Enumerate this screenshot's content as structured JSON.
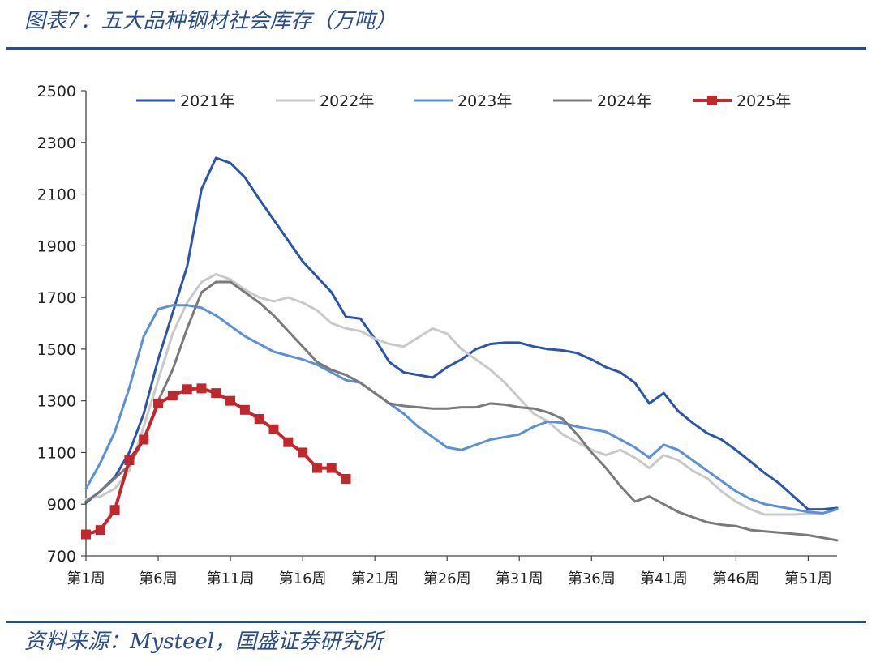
{
  "page": {
    "title": "图表7：五大品种钢材社会库存（万吨）",
    "source": "资料来源：Mysteel，国盛证券研究所",
    "accent_color": "#2a4d86"
  },
  "chart_data": {
    "type": "line",
    "title": "五大品种钢材社会库存（万吨）",
    "xlabel": "",
    "ylabel": "",
    "ylim": [
      700,
      2500
    ],
    "yticks": [
      700,
      900,
      1100,
      1300,
      1500,
      1700,
      1900,
      2100,
      2300,
      2500
    ],
    "xlim": [
      1,
      53
    ],
    "xticks": [
      {
        "week": 1,
        "label": "第1周"
      },
      {
        "week": 6,
        "label": "第6周"
      },
      {
        "week": 11,
        "label": "第11周"
      },
      {
        "week": 16,
        "label": "第16周"
      },
      {
        "week": 21,
        "label": "第21周"
      },
      {
        "week": 26,
        "label": "第26周"
      },
      {
        "week": 31,
        "label": "第31周"
      },
      {
        "week": 36,
        "label": "第36周"
      },
      {
        "week": 41,
        "label": "第41周"
      },
      {
        "week": 46,
        "label": "第46周"
      },
      {
        "week": 51,
        "label": "第51周"
      }
    ],
    "grid": false,
    "legend_position": "top",
    "series": [
      {
        "name": "2021年",
        "color": "#2b55a8",
        "marker": "none",
        "values": [
          905,
          950,
          1005,
          1100,
          1250,
          1460,
          1640,
          1820,
          2120,
          2240,
          2220,
          2165,
          2080,
          2000,
          1920,
          1840,
          1780,
          1720,
          1625,
          1618,
          1540,
          1450,
          1410,
          1400,
          1390,
          1430,
          1460,
          1500,
          1520,
          1525,
          1525,
          1510,
          1500,
          1495,
          1485,
          1460,
          1430,
          1410,
          1370,
          1290,
          1330,
          1260,
          1215,
          1175,
          1150,
          1110,
          1065,
          1020,
          980,
          930,
          880,
          880,
          885
        ]
      },
      {
        "name": "2022年",
        "color": "#c9c9c9",
        "marker": "none",
        "values": [
          920,
          930,
          960,
          1030,
          1200,
          1380,
          1560,
          1680,
          1760,
          1790,
          1770,
          1730,
          1700,
          1685,
          1700,
          1680,
          1650,
          1600,
          1580,
          1570,
          1540,
          1520,
          1510,
          1545,
          1580,
          1560,
          1500,
          1460,
          1420,
          1370,
          1310,
          1250,
          1220,
          1170,
          1140,
          1110,
          1090,
          1110,
          1080,
          1040,
          1090,
          1070,
          1030,
          1000,
          950,
          910,
          880,
          860,
          860,
          860,
          862,
          865,
          880
        ]
      },
      {
        "name": "2023年",
        "color": "#5b8fd6",
        "marker": "none",
        "values": [
          960,
          1060,
          1180,
          1350,
          1550,
          1655,
          1670,
          1670,
          1660,
          1630,
          1590,
          1550,
          1520,
          1490,
          1475,
          1460,
          1440,
          1410,
          1380,
          1370,
          1330,
          1290,
          1250,
          1200,
          1160,
          1120,
          1110,
          1130,
          1150,
          1160,
          1170,
          1200,
          1220,
          1215,
          1200,
          1190,
          1180,
          1150,
          1120,
          1080,
          1130,
          1110,
          1070,
          1030,
          990,
          950,
          920,
          900,
          890,
          880,
          870,
          865,
          880
        ]
      },
      {
        "name": "2024年",
        "color": "#7a7a7a",
        "marker": "none",
        "values": [
          910,
          950,
          1000,
          1050,
          1150,
          1300,
          1420,
          1580,
          1720,
          1760,
          1760,
          1720,
          1680,
          1630,
          1570,
          1510,
          1450,
          1420,
          1400,
          1370,
          1330,
          1290,
          1280,
          1275,
          1270,
          1270,
          1275,
          1275,
          1290,
          1285,
          1275,
          1270,
          1255,
          1230,
          1170,
          1100,
          1040,
          970,
          910,
          930,
          900,
          870,
          850,
          830,
          820,
          815,
          800,
          795,
          790,
          785,
          780,
          770,
          760
        ]
      },
      {
        "name": "2025年",
        "color": "#c0282d",
        "marker": "square",
        "values": [
          783,
          800,
          878,
          1070,
          1150,
          1290,
          1320,
          1345,
          1348,
          1330,
          1300,
          1265,
          1230,
          1190,
          1140,
          1100,
          1040,
          1040,
          998
        ]
      }
    ]
  }
}
